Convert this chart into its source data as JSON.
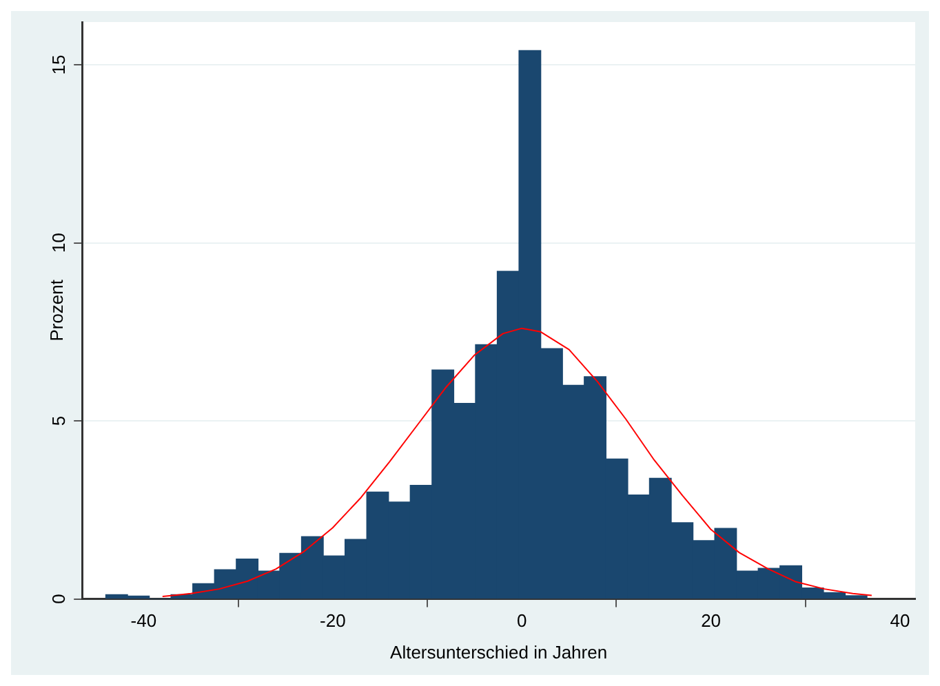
{
  "chart_data": {
    "type": "histogram",
    "xlabel": "Altersunterschied in Jahren",
    "ylabel": "Prozent",
    "bins": [
      -44,
      -41.7,
      -39.4,
      -37.1,
      -34.8,
      -32.5,
      -30.2,
      -27.9,
      -25.6,
      -23.3,
      -21,
      -18.7,
      -16.4,
      -14.1,
      -11.8,
      -9.5,
      -7.2,
      -4.9,
      -2.6,
      -0.3,
      2,
      4.3,
      6.6,
      8.9,
      11.2,
      13.5,
      15.8,
      18.1,
      20.4,
      22.7,
      25,
      27.3,
      29.6,
      31.9,
      34.2,
      36.5
    ],
    "values": [
      0.12,
      0.08,
      0,
      0.12,
      0.43,
      0.82,
      1.12,
      0.78,
      1.28,
      1.75,
      1.21,
      1.67,
      3.0,
      2.72,
      3.19,
      6.43,
      5.49,
      7.14,
      9.2,
      15.4,
      7.03,
      6.0,
      6.24,
      3.93,
      2.92,
      3.39,
      2.14,
      1.64,
      1.98,
      0.78,
      0.86,
      0.93,
      0.31,
      0.18,
      0.09
    ],
    "color": "#1a476f",
    "series": [
      {
        "type": "line",
        "color": "#ff0000",
        "x": [
          -38,
          -35,
          -32,
          -29,
          -26,
          -23,
          -20,
          -17,
          -14,
          -11,
          -8,
          -5,
          -2,
          0,
          2,
          5,
          8,
          11,
          14,
          17,
          20,
          23,
          26,
          29,
          32,
          35,
          37
        ],
        "values": [
          0.07,
          0.15,
          0.28,
          0.5,
          0.84,
          1.34,
          2.0,
          2.85,
          3.85,
          4.9,
          5.95,
          6.85,
          7.45,
          7.6,
          7.5,
          7.0,
          6.1,
          5.05,
          3.9,
          2.9,
          1.95,
          1.3,
          0.85,
          0.48,
          0.28,
          0.15,
          0.1
        ]
      }
    ],
    "xlim": [
      -46.5,
      41.6
    ],
    "ylim": [
      0,
      16.2
    ],
    "xticks": [
      -40,
      -20,
      0,
      20,
      40
    ],
    "yticks": [
      0,
      5,
      10,
      15
    ],
    "grid": "y"
  }
}
